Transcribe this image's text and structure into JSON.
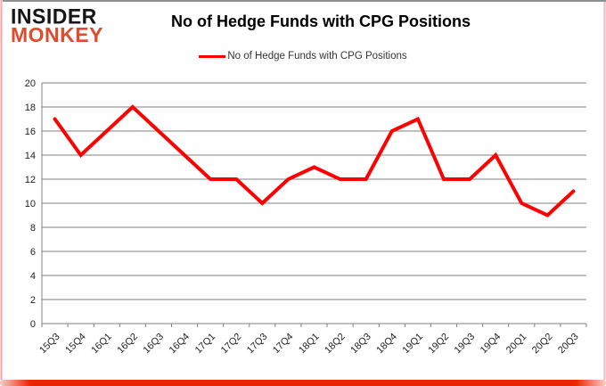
{
  "logo": {
    "line1": "INSIDER",
    "line2": "MONKEY",
    "accent_color": "#e04a2d"
  },
  "header": {
    "title": "No of Hedge Funds with CPG Positions"
  },
  "legend": {
    "label": "No of Hedge Funds with CPG Positions",
    "swatch_color": "#ff0000"
  },
  "chart_data": {
    "type": "line",
    "title": "No of Hedge Funds with CPG Positions",
    "categories": [
      "15Q3",
      "15Q4",
      "16Q1",
      "16Q2",
      "16Q3",
      "16Q4",
      "17Q1",
      "17Q2",
      "17Q3",
      "17Q4",
      "18Q1",
      "18Q2",
      "18Q3",
      "18Q4",
      "19Q1",
      "19Q2",
      "19Q3",
      "19Q4",
      "20Q1",
      "20Q2",
      "20Q3"
    ],
    "series": [
      {
        "name": "No of Hedge Funds with CPG Positions",
        "values": [
          17,
          14,
          16,
          18,
          16,
          14,
          12,
          12,
          10,
          12,
          13,
          12,
          12,
          16,
          17,
          12,
          12,
          14,
          10,
          9,
          11
        ]
      }
    ],
    "xlabel": "",
    "ylabel": "",
    "ylim": [
      0,
      20
    ],
    "ytick_step": 2,
    "grid": true,
    "legend_position": "top",
    "line_color": "#ff0000",
    "grid_color": "#808080",
    "label_color": "#1f1f1f"
  },
  "frame": {
    "top_line": "#8f8f8f",
    "side_line": "#f0a4a4",
    "bottom_bar": "#ee2301"
  }
}
